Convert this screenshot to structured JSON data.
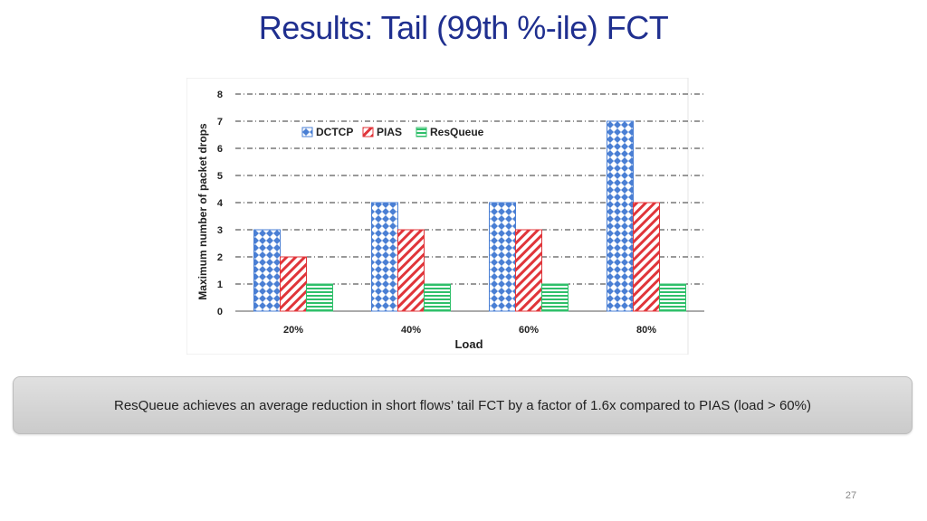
{
  "slide": {
    "title": "Results: Tail (99th %-ile) FCT",
    "callout": "ResQueue achieves an average reduction in short flows’ tail FCT by a factor of 1.6x compared to PIAS (load > 60%)",
    "page_number": "27"
  },
  "colors": {
    "title": "#1f2f8f",
    "dctcp": "#4a7fd4",
    "pias": "#e0353a",
    "resqueue": "#2fbf6a"
  },
  "chart_data": {
    "type": "bar",
    "categories": [
      "20%",
      "40%",
      "60%",
      "80%"
    ],
    "series": [
      {
        "name": "DCTCP",
        "values": [
          3,
          4,
          4,
          7
        ]
      },
      {
        "name": "PIAS",
        "values": [
          2,
          3,
          3,
          4
        ]
      },
      {
        "name": "ResQueue",
        "values": [
          1,
          1,
          1,
          1
        ]
      }
    ],
    "xlabel": "Load",
    "ylabel": "Maximum number of packet drops",
    "ylim": [
      0,
      8
    ],
    "yticks": [
      "0",
      "1",
      "2",
      "3",
      "4",
      "5",
      "6",
      "7",
      "8"
    ],
    "grid": "horizontal dash-dot",
    "legend": "top-left"
  }
}
